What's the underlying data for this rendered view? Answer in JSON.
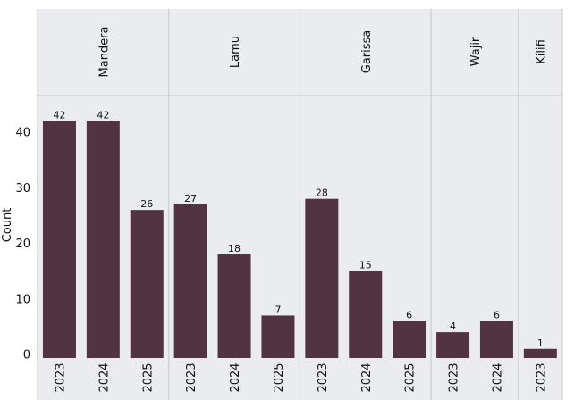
{
  "chart_data": {
    "type": "bar",
    "title": "",
    "xlabel": "",
    "ylabel": "Count",
    "ylim": [
      0,
      45
    ],
    "yticks": [
      0,
      10,
      20,
      30,
      40
    ],
    "grid": false,
    "facets": [
      {
        "name": "Mandera",
        "categories": [
          "2023",
          "2024",
          "2025"
        ],
        "values": [
          42,
          42,
          26
        ]
      },
      {
        "name": "Lamu",
        "categories": [
          "2023",
          "2024",
          "2025"
        ],
        "values": [
          27,
          18,
          7
        ]
      },
      {
        "name": "Garissa",
        "categories": [
          "2023",
          "2024",
          "2025"
        ],
        "values": [
          28,
          15,
          6
        ]
      },
      {
        "name": "Wajir",
        "categories": [
          "2023",
          "2024"
        ],
        "values": [
          4,
          6
        ]
      },
      {
        "name": "Kilifi",
        "categories": [
          "2023"
        ],
        "values": [
          1
        ]
      }
    ],
    "colors": {
      "bar": "#523441",
      "panel_background": "#ebecef",
      "divider": "#c4c6cb",
      "text": "#111111"
    }
  }
}
